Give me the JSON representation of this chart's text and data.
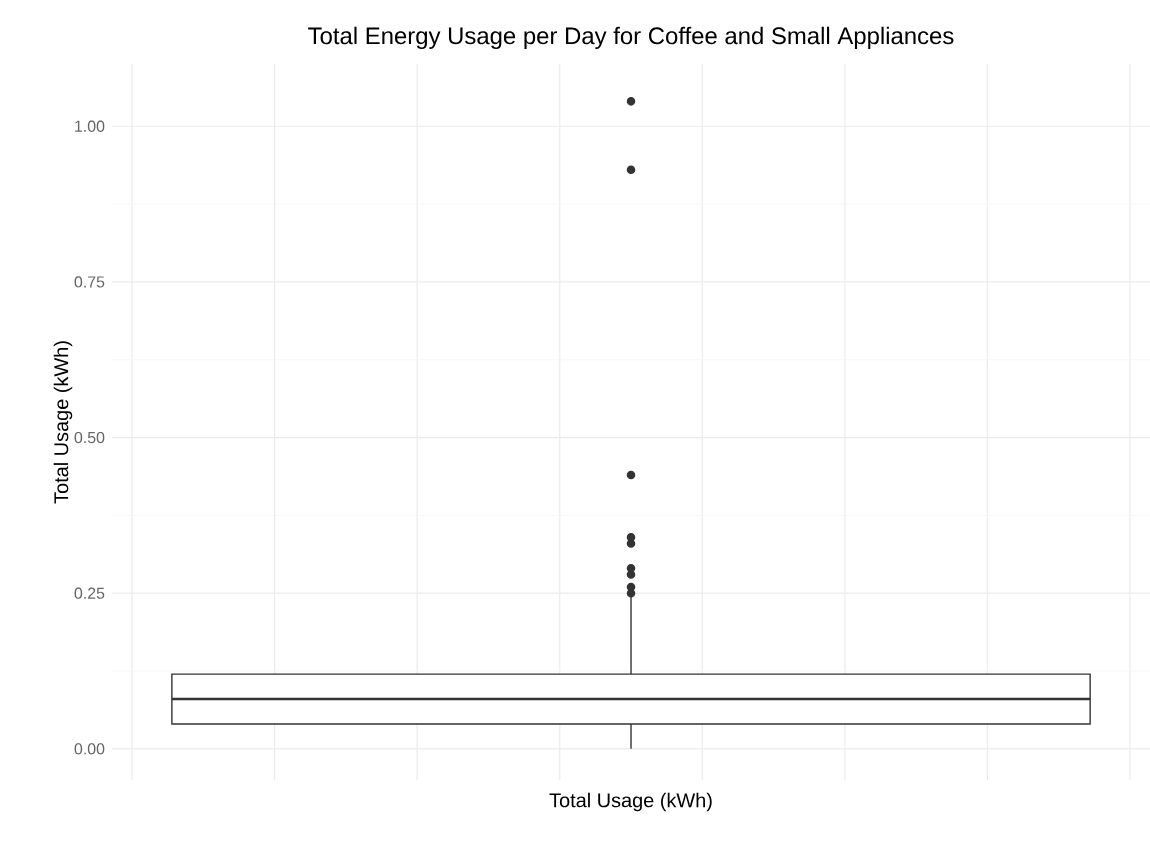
{
  "chart_data": {
    "type": "box",
    "title": "Total Energy Usage per Day for Coffee and Small Appliances",
    "xlabel": "Total Usage (kWh)",
    "ylabel": "Total Usage (kWh)",
    "categories": [
      null
    ],
    "boxes": [
      {
        "low": 0.0,
        "q1": 0.04,
        "median": 0.08,
        "q3": 0.12,
        "high": 0.245,
        "outliers": [
          0.25,
          0.26,
          0.28,
          0.29,
          0.33,
          0.34,
          0.44,
          0.93,
          1.04
        ]
      }
    ],
    "color": "#333333",
    "ylim": [
      -0.05,
      1.1
    ],
    "yticks": [
      {
        "value": 0,
        "label": "0.00"
      },
      {
        "value": 0.25,
        "label": "0.25"
      },
      {
        "value": 0.5,
        "label": "0.50"
      },
      {
        "value": 0.75,
        "label": "0.75"
      },
      {
        "value": 1.0,
        "label": "1.00"
      }
    ],
    "grid": true,
    "tick_labels": "y"
  }
}
